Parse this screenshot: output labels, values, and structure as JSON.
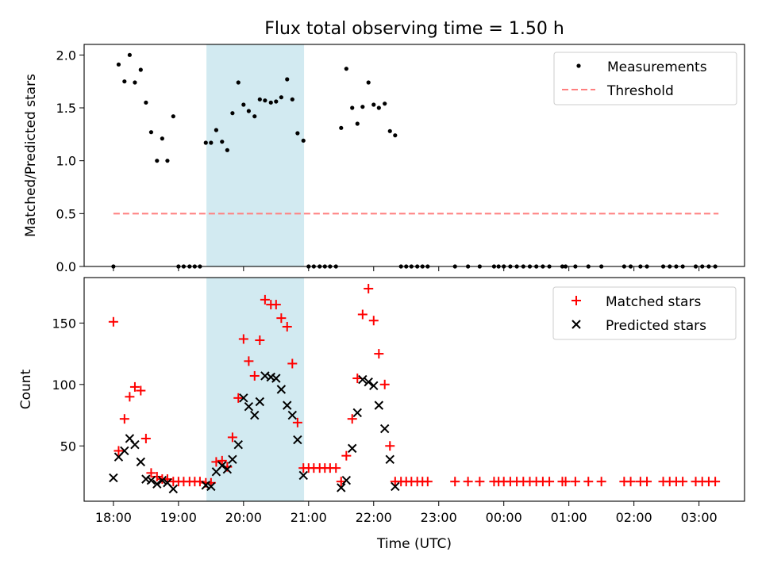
{
  "chart_data": [
    {
      "type": "scatter",
      "title": "Flux total observing time = 1.50 h",
      "ylabel": "Matched/Predicted stars",
      "xlim_hours": [
        17.55,
        27.7
      ],
      "ylim": [
        0,
        2.1
      ],
      "yticks": [
        0.0,
        0.5,
        1.0,
        1.5,
        2.0
      ],
      "ytick_labels": [
        "0.0",
        "0.5",
        "1.0",
        "1.5",
        "2.0"
      ],
      "highlight_span_hours": [
        19.43,
        20.93
      ],
      "highlight_color": "#add8e6",
      "legend_position": "upper right",
      "series": [
        {
          "name": "Measurements",
          "kind": "dots",
          "color": "#000000",
          "x_hours": [
            18.0,
            18.08,
            18.17,
            18.25,
            18.33,
            18.42,
            18.5,
            18.58,
            18.67,
            18.75,
            18.83,
            18.92,
            19.0,
            19.08,
            19.17,
            19.25,
            19.33,
            19.42,
            19.5,
            19.58,
            19.67,
            19.75,
            19.83,
            19.92,
            20.0,
            20.08,
            20.17,
            20.25,
            20.33,
            20.42,
            20.5,
            20.58,
            20.67,
            20.75,
            20.83,
            20.92,
            21.0,
            21.08,
            21.17,
            21.25,
            21.33,
            21.42,
            21.5,
            21.58,
            21.67,
            21.75,
            21.83,
            21.92,
            22.0,
            22.08,
            22.17,
            22.25,
            22.33,
            22.42,
            22.5,
            22.58,
            22.67,
            22.75,
            22.83,
            23.25,
            23.45,
            23.63,
            23.85,
            23.92,
            24.0,
            24.1,
            24.2,
            24.3,
            24.4,
            24.5,
            24.6,
            24.7,
            24.9,
            24.95,
            25.1,
            25.3,
            25.5,
            25.85,
            25.95,
            26.1,
            26.2,
            26.45,
            26.55,
            26.65,
            26.75,
            26.95,
            27.05,
            27.15,
            27.25
          ],
          "y": [
            0.0,
            1.91,
            1.75,
            2.0,
            1.74,
            1.86,
            1.55,
            1.27,
            1.0,
            1.21,
            1.0,
            1.42,
            0.0,
            0.0,
            0.0,
            0.0,
            0.0,
            1.17,
            1.17,
            1.29,
            1.18,
            1.1,
            1.45,
            1.74,
            1.53,
            1.47,
            1.42,
            1.58,
            1.57,
            1.55,
            1.56,
            1.6,
            1.77,
            1.58,
            1.26,
            1.19,
            0.0,
            0.0,
            0.0,
            0.0,
            0.0,
            0.0,
            1.31,
            1.87,
            1.5,
            1.35,
            1.51,
            1.74,
            1.53,
            1.5,
            1.54,
            1.28,
            1.24,
            0.0,
            0.0,
            0.0,
            0.0,
            0.0,
            0.0,
            0.0,
            0.0,
            0.0,
            0.0,
            0.0,
            0.0,
            0.0,
            0.0,
            0.0,
            0.0,
            0.0,
            0.0,
            0.0,
            0.0,
            0.0,
            0.0,
            0.0,
            0.0,
            0.0,
            0.0,
            0.0,
            0.0,
            0.0,
            0.0,
            0.0,
            0.0,
            0.0,
            0.0,
            0.0,
            0.0
          ]
        },
        {
          "name": "Threshold",
          "kind": "dashed-line",
          "color": "#ff7f7f",
          "x_hours": [
            18.0,
            27.3
          ],
          "y": [
            0.5,
            0.5
          ]
        }
      ]
    },
    {
      "type": "scatter",
      "ylabel": "Count",
      "xlabel": "Time (UTC)",
      "xlim_hours": [
        17.55,
        27.7
      ],
      "ylim": [
        5,
        187
      ],
      "yticks": [
        50,
        100,
        150
      ],
      "ytick_labels": [
        "50",
        "100",
        "150"
      ],
      "xticks_hours": [
        18,
        19,
        20,
        21,
        22,
        23,
        24,
        25,
        26,
        27
      ],
      "xtick_labels": [
        "18:00",
        "19:00",
        "20:00",
        "21:00",
        "22:00",
        "23:00",
        "00:00",
        "01:00",
        "02:00",
        "03:00"
      ],
      "highlight_span_hours": [
        19.43,
        20.93
      ],
      "highlight_color": "#add8e6",
      "legend_position": "upper right",
      "series": [
        {
          "name": "Matched stars",
          "kind": "plus",
          "color": "#ff0000",
          "x_hours": [
            18.0,
            18.08,
            18.17,
            18.25,
            18.33,
            18.42,
            18.5,
            18.58,
            18.67,
            18.75,
            18.83,
            18.92,
            19.0,
            19.08,
            19.17,
            19.25,
            19.33,
            19.42,
            19.5,
            19.58,
            19.67,
            19.75,
            19.83,
            19.92,
            20.0,
            20.08,
            20.17,
            20.25,
            20.33,
            20.42,
            20.5,
            20.58,
            20.67,
            20.75,
            20.83,
            20.92,
            21.0,
            21.08,
            21.17,
            21.25,
            21.33,
            21.42,
            21.5,
            21.58,
            21.67,
            21.75,
            21.83,
            21.92,
            22.0,
            22.08,
            22.17,
            22.25,
            22.33,
            22.42,
            22.5,
            22.58,
            22.67,
            22.75,
            22.83,
            23.25,
            23.45,
            23.63,
            23.85,
            23.92,
            24.0,
            24.1,
            24.2,
            24.3,
            24.4,
            24.5,
            24.6,
            24.7,
            24.9,
            24.95,
            25.1,
            25.3,
            25.5,
            25.85,
            25.95,
            26.1,
            26.2,
            26.45,
            26.55,
            26.65,
            26.75,
            26.95,
            27.05,
            27.15,
            27.25
          ],
          "y": [
            151,
            46,
            72,
            90,
            98,
            95,
            56,
            28,
            25,
            23,
            23,
            21,
            21,
            21,
            21,
            21,
            21,
            20,
            20,
            37,
            38,
            33,
            57,
            89,
            137,
            119,
            107,
            136,
            169,
            165,
            165,
            154,
            147,
            117,
            69,
            32,
            32,
            32,
            32,
            32,
            32,
            32,
            21,
            42,
            72,
            105,
            157,
            178,
            152,
            125,
            100,
            50,
            21,
            21,
            21,
            21,
            21,
            21,
            21,
            21,
            21,
            21,
            21,
            21,
            21,
            21,
            21,
            21,
            21,
            21,
            21,
            21,
            21,
            21,
            21,
            21,
            21,
            21,
            21,
            21,
            21,
            21,
            21,
            21,
            21,
            21,
            21,
            21,
            21
          ]
        },
        {
          "name": "Predicted stars",
          "kind": "x",
          "color": "#000000",
          "x_hours": [
            18.0,
            18.08,
            18.17,
            18.25,
            18.33,
            18.42,
            18.5,
            18.58,
            18.67,
            18.75,
            18.83,
            18.92,
            19.42,
            19.5,
            19.58,
            19.67,
            19.75,
            19.83,
            19.92,
            20.0,
            20.08,
            20.17,
            20.25,
            20.33,
            20.42,
            20.5,
            20.58,
            20.67,
            20.75,
            20.83,
            20.92,
            21.5,
            21.58,
            21.67,
            21.75,
            21.83,
            21.92,
            22.0,
            22.08,
            22.17,
            22.25,
            22.33
          ],
          "y": [
            24,
            41,
            46,
            56,
            51,
            37,
            23,
            22,
            19,
            22,
            20,
            15,
            18,
            17,
            29,
            34,
            31,
            39,
            51,
            89,
            82,
            75,
            86,
            107,
            106,
            105,
            96,
            83,
            75,
            55,
            26,
            16,
            22,
            48,
            77,
            104,
            102,
            99,
            83,
            64,
            39,
            17
          ]
        }
      ]
    }
  ]
}
